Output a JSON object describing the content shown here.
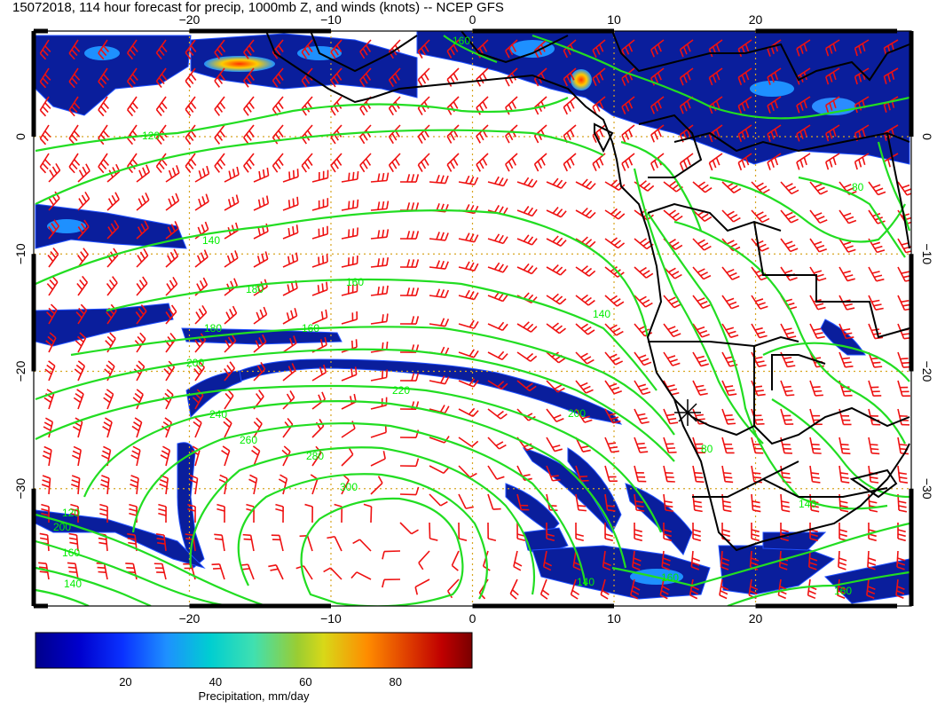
{
  "title": "15072018, 114 hour forecast for precip, 1000mb Z, and winds (knots) -- NCEP GFS",
  "map": {
    "lon_range": [
      -31,
      31
    ],
    "lat_range": [
      -40,
      9
    ],
    "lon_ticks": [
      {
        "value": -20,
        "label": "−20"
      },
      {
        "value": -10,
        "label": "−10"
      },
      {
        "value": 0,
        "label": "0"
      },
      {
        "value": 10,
        "label": "10"
      },
      {
        "value": 20,
        "label": "20"
      }
    ],
    "lat_ticks": [
      {
        "value": 0,
        "label": "0"
      },
      {
        "value": -10,
        "label": "−10"
      },
      {
        "value": -20,
        "label": "−20"
      },
      {
        "value": -30,
        "label": "−30"
      }
    ],
    "grid_lons": [
      -20,
      -10,
      0,
      10,
      20
    ],
    "grid_lats": [
      0,
      -10,
      -20,
      -30
    ],
    "colors": {
      "contour": "#22dd22",
      "wind_barb": "#ee1111",
      "coastline": "#000000",
      "grid": "#d8a520",
      "precip_low": "#0a1e9c"
    }
  },
  "contour_labels": [
    "120",
    "140",
    "160",
    "180",
    "200",
    "220",
    "240",
    "260",
    "280",
    "300",
    "180",
    "160",
    "140",
    "120",
    "200",
    "160",
    "140",
    "160",
    "140",
    "80",
    "80",
    "200",
    "160",
    "140",
    "160"
  ],
  "colorbar": {
    "label": "Precipitation, mm/day",
    "min": 0,
    "max": 97,
    "ticks": [
      "20",
      "40",
      "60",
      "80"
    ],
    "tick_values": [
      20,
      40,
      60,
      80
    ],
    "colors": [
      "#00008b",
      "#0000cd",
      "#0a32ff",
      "#1e90ff",
      "#00ced1",
      "#40e0b0",
      "#9acd32",
      "#d8d818",
      "#ff8c00",
      "#e04000",
      "#c00000",
      "#7a0000"
    ]
  }
}
